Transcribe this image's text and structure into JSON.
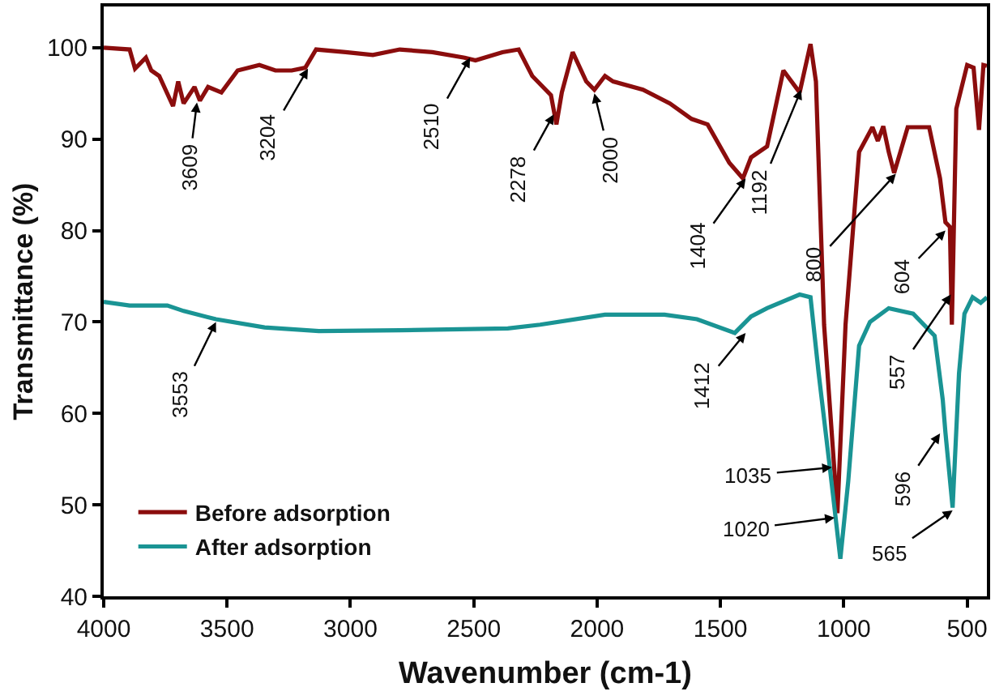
{
  "chart_data": {
    "type": "line",
    "xlabel": "Wavenumber (cm-1)",
    "ylabel": "Transmittance (%)",
    "xlim": [
      4000,
      420
    ],
    "xticks": [
      4000,
      3500,
      3000,
      2500,
      2000,
      1500,
      1000,
      500
    ],
    "ylim": [
      40,
      104.5
    ],
    "yticks": [
      40,
      50,
      60,
      70,
      80,
      90,
      100
    ],
    "grid": false,
    "legend": "bottom left",
    "line_style": "solid",
    "marker": "none",
    "series": [
      {
        "name": "Before adsorption",
        "color": "#8b0d0d",
        "x": [
          4000,
          3895,
          3873,
          3829,
          3807,
          3775,
          3719,
          3698,
          3676,
          3632,
          3610,
          3577,
          3523,
          3457,
          3369,
          3304,
          3238,
          3183,
          3139,
          3019,
          2909,
          2800,
          2668,
          2537,
          2493,
          2384,
          2318,
          2263,
          2187,
          2165,
          2143,
          2099,
          2044,
          2011,
          1968,
          1935,
          1814,
          1705,
          1617,
          1552,
          1464,
          1409,
          1376,
          1311,
          1245,
          1179,
          1135,
          1113,
          1080,
          1026,
          993,
          938,
          884,
          862,
          840,
          818,
          796,
          741,
          654,
          610,
          588,
          570,
          562,
          544,
          500,
          474,
          452,
          434,
          420
        ],
        "values": [
          100,
          99.8,
          97.7,
          98.9,
          97.5,
          96.9,
          93.6,
          96.3,
          93.9,
          95.7,
          94.2,
          95.7,
          95.1,
          97.5,
          98.1,
          97.5,
          97.5,
          97.8,
          99.8,
          99.5,
          99.2,
          99.8,
          99.5,
          98.9,
          98.6,
          99.5,
          99.8,
          96.9,
          94.8,
          91.6,
          95.1,
          99.5,
          96.3,
          95.4,
          96.9,
          96.3,
          95.4,
          93.9,
          92.2,
          91.6,
          87.4,
          85.7,
          88.0,
          89.2,
          97.5,
          95.1,
          100.4,
          96.3,
          69.7,
          49.1,
          69.7,
          88.6,
          91.3,
          89.8,
          91.4,
          88.6,
          86.3,
          91.3,
          91.3,
          85.7,
          80.9,
          80.4,
          69.7,
          93.3,
          98.1,
          97.8,
          91.0,
          98.1,
          98
        ]
      },
      {
        "name": "After adsorption",
        "color": "#1a9494",
        "x": [
          4000,
          3895,
          3742,
          3676,
          3545,
          3348,
          3128,
          2800,
          2362,
          2231,
          1968,
          1727,
          1595,
          1442,
          1376,
          1311,
          1179,
          1135,
          1102,
          1058,
          1014,
          982,
          938,
          894,
          818,
          719,
          632,
          599,
          588,
          559,
          533,
          511,
          478,
          445,
          420
        ],
        "values": [
          72.2,
          71.8,
          71.8,
          71.2,
          70.3,
          69.4,
          69.0,
          69.1,
          69.3,
          69.7,
          70.8,
          70.8,
          70.3,
          68.8,
          70.6,
          71.5,
          73.0,
          72.7,
          64.4,
          54.4,
          44.1,
          52.6,
          67.4,
          70.0,
          71.5,
          70.9,
          68.5,
          61.5,
          57.9,
          49.7,
          64.4,
          70.9,
          72.7,
          72.1,
          72.7
        ]
      }
    ],
    "annotations": [
      {
        "text": "3609",
        "x": 3622,
        "y": 94.0
      },
      {
        "text": "3204",
        "x": 3172,
        "y": 97.7
      },
      {
        "text": "2510",
        "x": 2515,
        "y": 98.9
      },
      {
        "text": "2278",
        "x": 2176,
        "y": 92.7
      },
      {
        "text": "2000",
        "x": 2011,
        "y": 95.0
      },
      {
        "text": "1404",
        "x": 1398,
        "y": 85.7
      },
      {
        "text": "1192",
        "x": 1173,
        "y": 95.4
      },
      {
        "text": "800",
        "x": 789,
        "y": 86.2
      },
      {
        "text": "604",
        "x": 588,
        "y": 80.0
      },
      {
        "text": "557",
        "x": 566,
        "y": 73.0
      },
      {
        "text": "3553",
        "x": 3545,
        "y": 70.0
      },
      {
        "text": "1412",
        "x": 1398,
        "y": 68.8
      },
      {
        "text": "1035",
        "x": 1048,
        "y": 54.1
      },
      {
        "text": "1020",
        "x": 1037,
        "y": 48.6
      },
      {
        "text": "596",
        "x": 610,
        "y": 57.8
      },
      {
        "text": "565",
        "x": 559,
        "y": 49.4
      }
    ]
  }
}
